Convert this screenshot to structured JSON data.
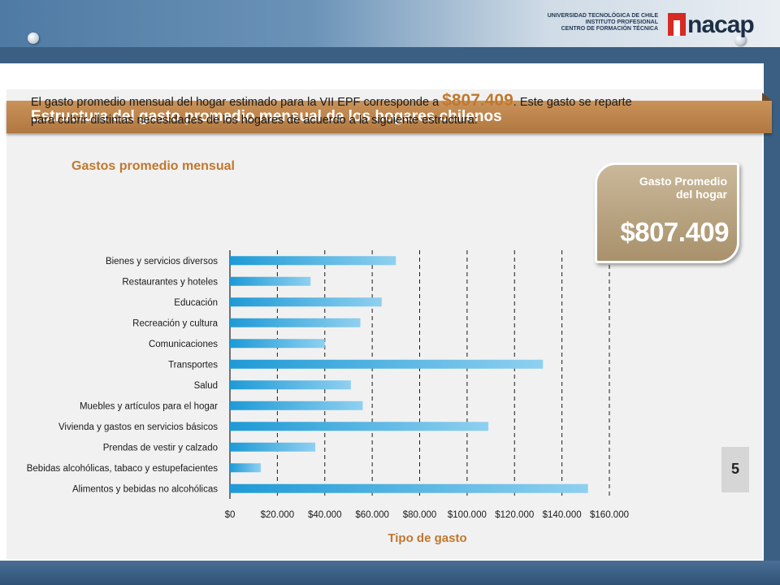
{
  "header": {
    "institution_lines": [
      "UNIVERSIDAD TECNOLÓGICA DE CHILE",
      "INSTITUTO PROFESIONAL",
      "CENTRO DE FORMACIÓN TÉCNICA"
    ],
    "logo_text": "nacap"
  },
  "slide": {
    "title": "Estructura del gasto promedio mensual de los hogares chilenos",
    "intro_part1": "El gasto promedio mensual del hogar estimado para la VII EPF corresponde a",
    "intro_amount": "$807.409",
    "intro_part2": ". Este gasto se reparte para cubrir distintas necesidades de los hogares de acuerdo a la siguiente estructura:",
    "chart_title": "Gastos promedio mensual",
    "card_label": "Gasto Promedio del hogar",
    "card_value": "$807.409",
    "page_number": "5"
  },
  "colors": {
    "bar_dark": "#1e9ad6",
    "bar_light": "#8fd0f0",
    "accent": "#c0782e"
  },
  "chart_data": {
    "type": "bar",
    "orientation": "horizontal",
    "title": "Gastos promedio mensual",
    "xlabel": "Tipo de gasto",
    "ylabel": "",
    "xlim": [
      0,
      160000
    ],
    "grid": "vertical-dashed",
    "categories": [
      "Bienes y servicios diversos",
      "Restaurantes y hoteles",
      "Educación",
      "Recreación y cultura",
      "Comunicaciones",
      "Transportes",
      "Salud",
      "Muebles y artículos para el hogar",
      "Vivienda y gastos en servicios básicos",
      "Prendas de vestir y calzado",
      "Bebidas alcohólicas, tabaco y estupefacientes",
      "Alimentos y bebidas no alcohólicas"
    ],
    "values": [
      70000,
      34000,
      64000,
      55000,
      40000,
      132000,
      51000,
      56000,
      109000,
      36000,
      13000,
      151000
    ],
    "tick_values": [
      0,
      20000,
      40000,
      60000,
      80000,
      100000,
      120000,
      140000,
      160000
    ],
    "tick_labels": [
      "$0",
      "$20.000",
      "$40.000",
      "$60.000",
      "$80.000",
      "$100.000",
      "$120.000",
      "$140.000",
      "$160.000"
    ]
  }
}
